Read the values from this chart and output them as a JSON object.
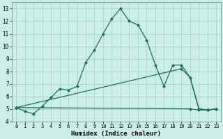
{
  "xlabel": "Humidex (Indice chaleur)",
  "background_color": "#cceee8",
  "grid_color": "#aad4cc",
  "line_color": "#1a6e5a",
  "xlim": [
    -0.5,
    23.5
  ],
  "ylim": [
    4,
    13.5
  ],
  "yticks": [
    4,
    5,
    6,
    7,
    8,
    9,
    10,
    11,
    12,
    13
  ],
  "xticks": [
    0,
    1,
    2,
    3,
    4,
    5,
    6,
    7,
    8,
    9,
    10,
    11,
    12,
    13,
    14,
    15,
    16,
    17,
    18,
    19,
    20,
    21,
    22,
    23
  ],
  "line1_x": [
    0,
    1,
    2,
    3,
    4,
    5,
    6,
    7,
    8,
    9,
    10,
    11,
    12,
    13,
    14,
    15,
    16,
    17,
    18,
    19,
    20,
    21,
    22,
    23
  ],
  "line1_y": [
    5.1,
    4.8,
    4.6,
    5.2,
    5.9,
    6.6,
    6.5,
    6.8,
    8.7,
    9.7,
    11.0,
    12.2,
    13.0,
    12.0,
    11.7,
    10.5,
    8.5,
    6.8,
    8.5,
    8.5,
    7.5,
    5.0,
    4.9,
    5.0
  ],
  "line2_x": [
    0,
    19,
    20,
    21,
    22,
    23
  ],
  "line2_y": [
    5.1,
    8.2,
    7.5,
    5.0,
    4.9,
    5.0
  ],
  "line3_x": [
    0,
    20,
    21,
    22,
    23
  ],
  "line3_y": [
    5.1,
    5.0,
    4.9,
    4.9,
    5.0
  ]
}
